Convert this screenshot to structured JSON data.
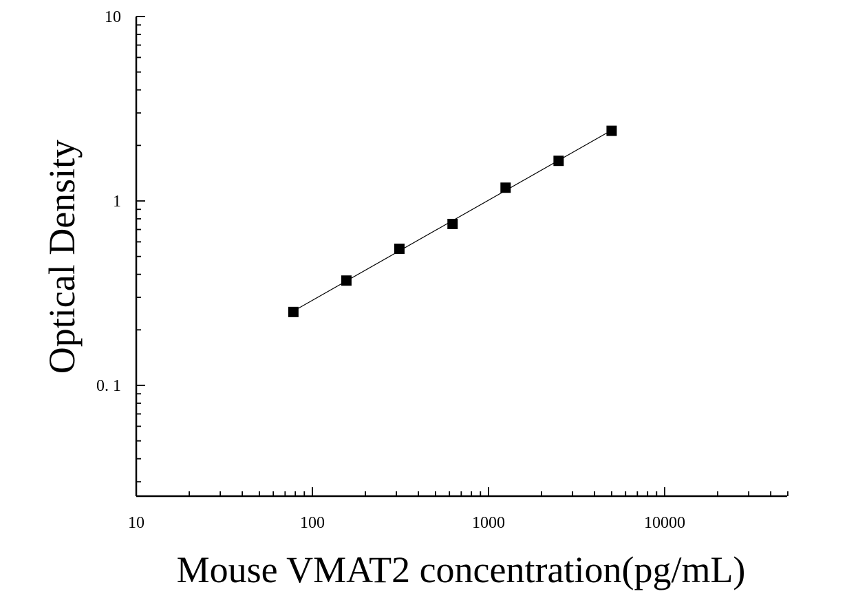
{
  "chart_data": {
    "type": "scatter",
    "xlabel": "Mouse VMAT2 concentration(pg/mL)",
    "ylabel": "Optical Density",
    "x_scale": "log",
    "y_scale": "log",
    "xlim": [
      10,
      50000
    ],
    "ylim": [
      0.025,
      10
    ],
    "x_ticks": [
      {
        "value": 10,
        "label": "10"
      },
      {
        "value": 100,
        "label": "100"
      },
      {
        "value": 1000,
        "label": "1000"
      },
      {
        "value": 10000,
        "label": "10000"
      }
    ],
    "y_ticks": [
      {
        "value": 0.1,
        "label": "0. 1"
      },
      {
        "value": 1,
        "label": "1"
      },
      {
        "value": 10,
        "label": "10"
      }
    ],
    "grid": false,
    "series": [
      {
        "x": [
          78,
          156,
          312,
          625,
          1250,
          2500,
          5000
        ],
        "y": [
          0.25,
          0.37,
          0.55,
          0.75,
          1.18,
          1.65,
          2.4
        ],
        "marker": "square",
        "color": "#000000",
        "fit_line": true
      }
    ]
  }
}
